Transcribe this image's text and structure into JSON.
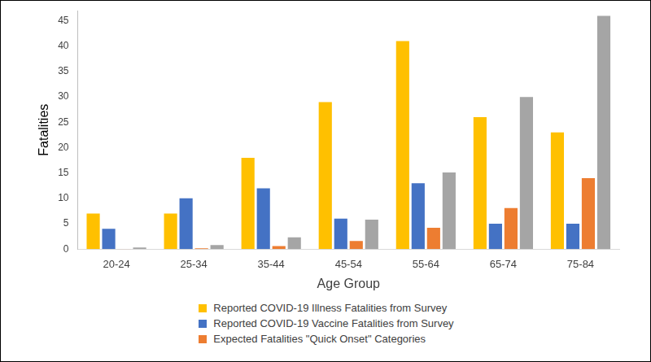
{
  "chart_data": {
    "type": "bar",
    "x_label": "Age Group",
    "y_label": "Fatalities",
    "categories": [
      "20-24",
      "25-34",
      "35-44",
      "45-54",
      "55-64",
      "65-74",
      "75-84"
    ],
    "series": [
      {
        "name": "Reported COVID-19 Illness Fatalities from Survey",
        "color": "#FFC000",
        "values": [
          7,
          7,
          18,
          29,
          41,
          26,
          23
        ]
      },
      {
        "name": "Reported COVID-19 Vaccine Fatalities from Survey",
        "color": "#4472C4",
        "values": [
          4,
          10,
          12,
          6,
          13,
          5,
          5
        ]
      },
      {
        "name": "Expected Fatalities \"Quick Onset\" Categories",
        "color": "#ED7D31",
        "values": [
          0.05,
          0.15,
          0.6,
          1.6,
          4.2,
          8.1,
          14
        ]
      },
      {
        "name": null,
        "color": "#A5A5A5",
        "values": [
          0.3,
          0.8,
          2.3,
          5.8,
          15.1,
          30,
          46
        ]
      }
    ],
    "ylim": [
      0,
      47
    ],
    "yticks": [
      0,
      5,
      10,
      15,
      20,
      25,
      30,
      35,
      40,
      45
    ],
    "grid": false,
    "legend": "bottom"
  }
}
